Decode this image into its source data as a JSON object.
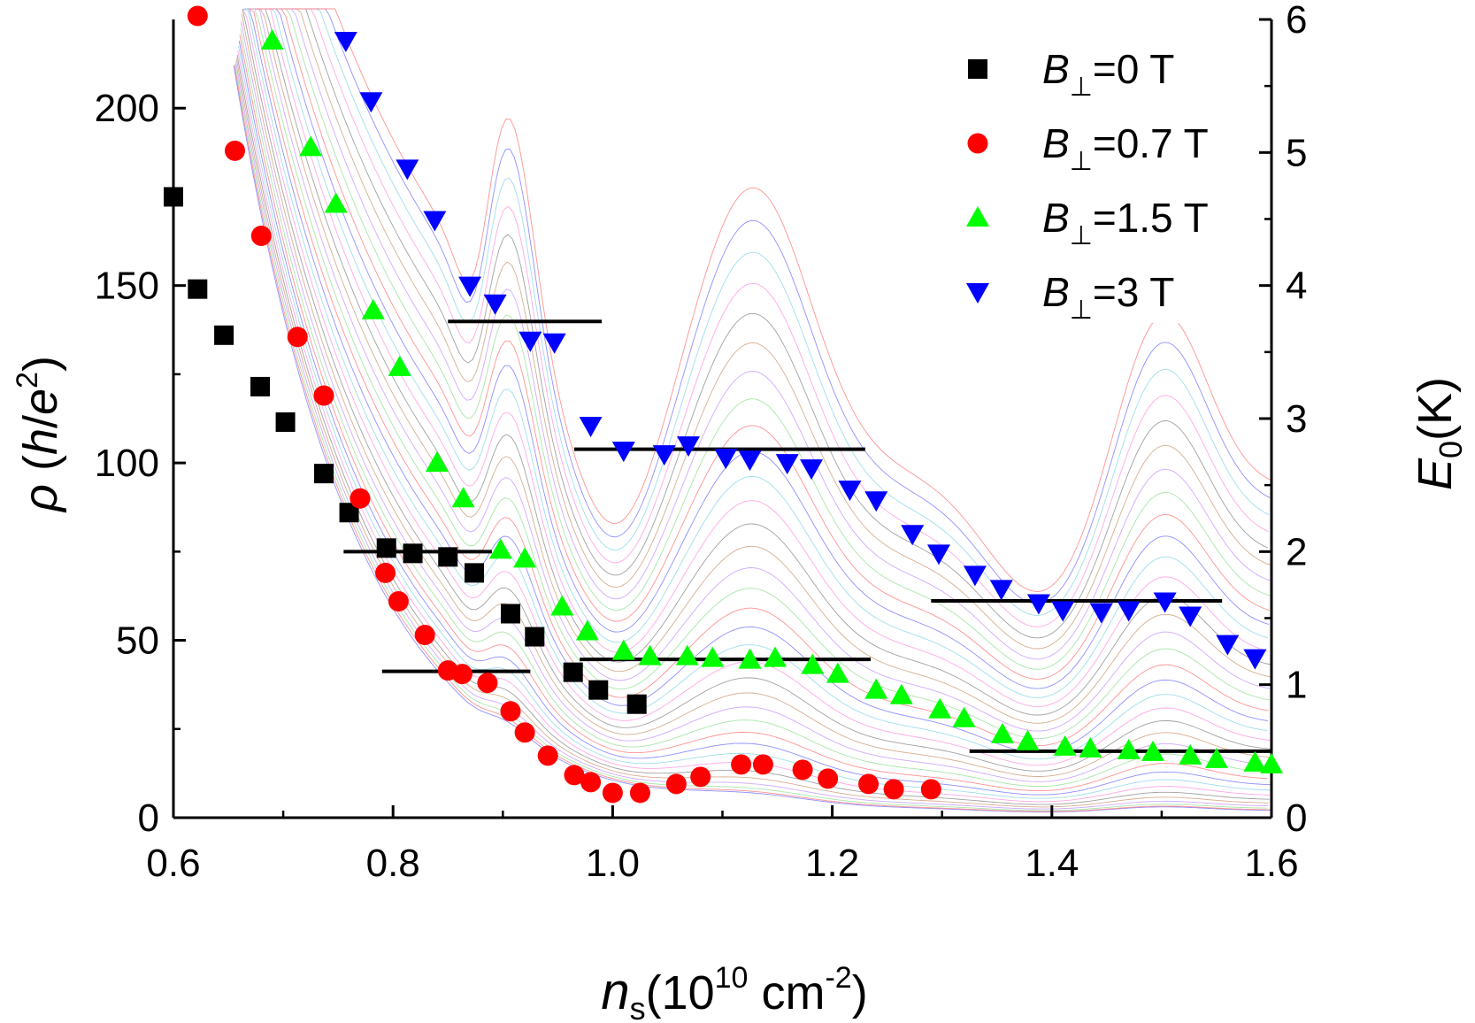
{
  "chart_data": {
    "type": "scatter",
    "xlabel": {
      "main": "n",
      "sub": "s",
      "open": "(10",
      "sup": "10",
      "rest": " cm",
      "sup2": "-2",
      "close": ")"
    },
    "ylabel": {
      "sym": "ρ",
      "open": " (",
      "h": "h",
      "slash": "/",
      "e": "e",
      "sup": "2",
      "close": ")"
    },
    "y2label": {
      "main": "E",
      "sub": "0",
      "rest": "(K)"
    },
    "xlim": [
      0.6,
      1.6
    ],
    "ylim": [
      0,
      225
    ],
    "y2lim": [
      0,
      6
    ],
    "xticks": [
      "0.6",
      "0.8",
      "1.0",
      "1.2",
      "1.4",
      "1.6"
    ],
    "yticks": [
      "0",
      "50",
      "100",
      "150",
      "200"
    ],
    "y2ticks": [
      "0",
      "1",
      "2",
      "3",
      "4",
      "5",
      "6"
    ],
    "legend_position": "top-right",
    "series": [
      {
        "name": "=0 T",
        "legend_prefix": "B",
        "legend_sub": "⊥",
        "marker": "square",
        "color": "#000000",
        "points": [
          [
            0.6,
            175
          ],
          [
            0.622,
            149
          ],
          [
            0.646,
            136
          ],
          [
            0.679,
            121.5
          ],
          [
            0.702,
            111.5
          ],
          [
            0.737,
            97
          ],
          [
            0.76,
            86
          ],
          [
            0.794,
            76
          ],
          [
            0.818,
            74.5
          ],
          [
            0.85,
            73.5
          ],
          [
            0.874,
            69
          ],
          [
            0.907,
            57.5
          ],
          [
            0.929,
            51
          ],
          [
            0.964,
            41
          ],
          [
            0.987,
            36
          ],
          [
            1.022,
            32
          ]
        ]
      },
      {
        "name": "=0.7 T",
        "legend_prefix": "B",
        "legend_sub": "⊥",
        "marker": "circle",
        "color": "#ff0000",
        "points": [
          [
            0.622,
            226
          ],
          [
            0.656,
            188
          ],
          [
            0.68,
            164
          ],
          [
            0.713,
            135.5
          ],
          [
            0.737,
            119
          ],
          [
            0.77,
            90
          ],
          [
            0.793,
            69
          ],
          [
            0.805,
            61
          ],
          [
            0.829,
            51.5
          ],
          [
            0.85,
            41.5
          ],
          [
            0.863,
            40.5
          ],
          [
            0.886,
            38
          ],
          [
            0.907,
            30
          ],
          [
            0.92,
            24
          ],
          [
            0.941,
            17.5
          ],
          [
            0.965,
            12
          ],
          [
            0.98,
            10
          ],
          [
            1.0,
            7
          ],
          [
            1.025,
            7
          ],
          [
            1.058,
            9.5
          ],
          [
            1.08,
            11.5
          ],
          [
            1.117,
            15
          ],
          [
            1.137,
            15
          ],
          [
            1.173,
            13.5
          ],
          [
            1.196,
            11
          ],
          [
            1.233,
            9.5
          ],
          [
            1.256,
            8
          ],
          [
            1.29,
            8
          ]
        ]
      },
      {
        "name": "=1.5 T",
        "legend_prefix": "B",
        "legend_sub": "⊥",
        "marker": "triangle-up",
        "color": "#00ff00",
        "points": [
          [
            0.69,
            219
          ],
          [
            0.725,
            189
          ],
          [
            0.748,
            173
          ],
          [
            0.782,
            143
          ],
          [
            0.806,
            127
          ],
          [
            0.84,
            100
          ],
          [
            0.864,
            90
          ],
          [
            0.898,
            75.5
          ],
          [
            0.92,
            73
          ],
          [
            0.954,
            59.5
          ],
          [
            0.977,
            52.5
          ],
          [
            1.01,
            47
          ],
          [
            1.034,
            45.5
          ],
          [
            1.068,
            45.5
          ],
          [
            1.091,
            45
          ],
          [
            1.125,
            44.5
          ],
          [
            1.148,
            45
          ],
          [
            1.182,
            43
          ],
          [
            1.205,
            40.5
          ],
          [
            1.24,
            36
          ],
          [
            1.263,
            34.5
          ],
          [
            1.298,
            30.5
          ],
          [
            1.32,
            28
          ],
          [
            1.355,
            23.5
          ],
          [
            1.378,
            21.5
          ],
          [
            1.412,
            20
          ],
          [
            1.435,
            19.5
          ],
          [
            1.47,
            19
          ],
          [
            1.492,
            18.5
          ],
          [
            1.526,
            17.5
          ],
          [
            1.55,
            16.5
          ],
          [
            1.585,
            15.5
          ],
          [
            1.6,
            15
          ]
        ]
      },
      {
        "name": "=3 T",
        "legend_prefix": "B",
        "legend_sub": "⊥",
        "marker": "triangle-down",
        "color": "#0000ff",
        "points": [
          [
            0.757,
            219
          ],
          [
            0.78,
            202
          ],
          [
            0.813,
            183
          ],
          [
            0.838,
            168.5
          ],
          [
            0.87,
            150
          ],
          [
            0.893,
            145
          ],
          [
            0.925,
            134.5
          ],
          [
            0.947,
            134
          ],
          [
            0.98,
            110.5
          ],
          [
            1.01,
            103.5
          ],
          [
            1.047,
            102.5
          ],
          [
            1.069,
            105
          ],
          [
            1.103,
            101.5
          ],
          [
            1.125,
            101
          ],
          [
            1.159,
            100
          ],
          [
            1.181,
            98.5
          ],
          [
            1.216,
            92.5
          ],
          [
            1.24,
            89.5
          ],
          [
            1.273,
            80
          ],
          [
            1.297,
            74.5
          ],
          [
            1.33,
            68.5
          ],
          [
            1.354,
            64.5
          ],
          [
            1.388,
            60.5
          ],
          [
            1.41,
            58.5
          ],
          [
            1.445,
            58
          ],
          [
            1.47,
            58.5
          ],
          [
            1.503,
            61
          ],
          [
            1.526,
            57
          ],
          [
            1.56,
            49
          ],
          [
            1.585,
            45
          ]
        ]
      }
    ],
    "e0_levels": [
      {
        "x": [
          0.755,
          0.89
        ],
        "E0": 2.0
      },
      {
        "x": [
          0.85,
          0.99
        ],
        "E0": 3.73
      },
      {
        "x": [
          0.79,
          0.925
        ],
        "E0": 1.1
      },
      {
        "x": [
          0.965,
          1.23
        ],
        "E0": 2.77
      },
      {
        "x": [
          0.97,
          1.235
        ],
        "E0": 1.19
      },
      {
        "x": [
          1.29,
          1.555
        ],
        "E0": 1.63
      },
      {
        "x": [
          1.325,
          1.6
        ],
        "E0": 0.5
      }
    ],
    "background_traces": "dense family of thin multicolored resistivity-vs-density curves, each decreasing steeply near 0.65–0.75 then showing oscillation peaks near 0.9, 1.13 and 1.5",
    "colors": {
      "trace_palette": [
        "#7d7dff",
        "#ff8080",
        "#9be09b",
        "#c89bff",
        "#d0a080",
        "#909090",
        "#ff9adf",
        "#8fd8e8"
      ]
    }
  }
}
